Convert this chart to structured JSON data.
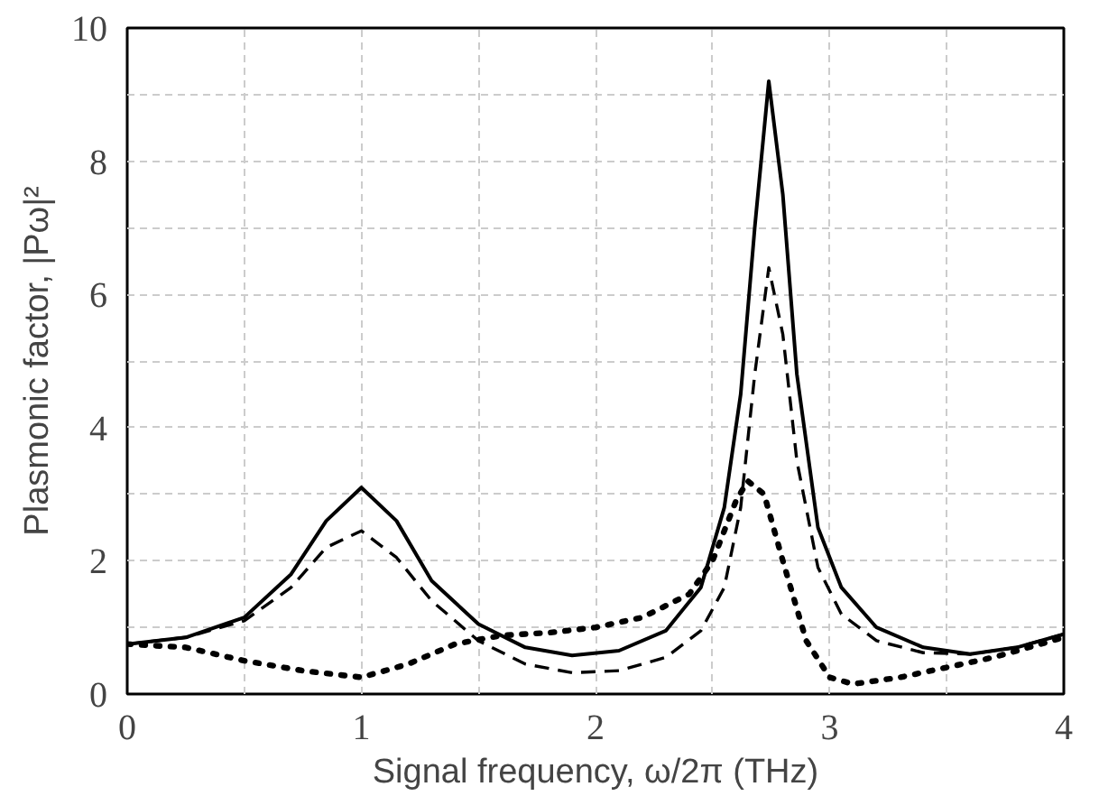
{
  "chart_data": {
    "type": "line",
    "xlabel": "Signal frequency, ω/2π (THz)",
    "ylabel": "Plasmonic factor, |Pω|²",
    "xlim": [
      0,
      4
    ],
    "ylim": [
      0,
      10
    ],
    "xticks": [
      0,
      {
        "value": 0.5,
        "label": null
      },
      1,
      {
        "value": 1.5,
        "label": null
      },
      2,
      {
        "value": 2.5,
        "label": null
      },
      3,
      {
        "value": 3.5,
        "label": null
      },
      4
    ],
    "yticks": [
      0,
      {
        "value": 1,
        "label": null
      },
      2,
      {
        "value": 3,
        "label": null
      },
      4,
      {
        "value": 5,
        "label": null
      },
      6,
      {
        "value": 7,
        "label": null
      },
      8,
      {
        "value": 9,
        "label": null
      },
      10
    ],
    "grid": true,
    "marker": "none",
    "series": [
      {
        "color": "#000000",
        "line_style": "solid",
        "x": [
          0,
          0.25,
          0.5,
          0.7,
          0.85,
          1.0,
          1.15,
          1.3,
          1.5,
          1.7,
          1.9,
          2.1,
          2.3,
          2.45,
          2.55,
          2.62,
          2.68,
          2.74,
          2.8,
          2.86,
          2.95,
          3.05,
          3.2,
          3.4,
          3.6,
          3.8,
          4.0
        ],
        "values": [
          0.75,
          0.85,
          1.15,
          1.8,
          2.6,
          3.1,
          2.6,
          1.7,
          1.05,
          0.7,
          0.58,
          0.65,
          0.95,
          1.6,
          2.8,
          4.5,
          7.0,
          9.2,
          7.5,
          4.8,
          2.5,
          1.6,
          1.0,
          0.7,
          0.6,
          0.7,
          0.9
        ]
      },
      {
        "color": "#000000",
        "line_style": "dashed",
        "x": [
          0,
          0.25,
          0.5,
          0.7,
          0.85,
          1.0,
          1.15,
          1.3,
          1.5,
          1.7,
          1.9,
          2.1,
          2.3,
          2.45,
          2.55,
          2.62,
          2.68,
          2.74,
          2.8,
          2.86,
          2.95,
          3.05,
          3.2,
          3.4,
          3.6,
          3.8,
          4.0
        ],
        "values": [
          0.75,
          0.85,
          1.1,
          1.6,
          2.2,
          2.45,
          2.05,
          1.4,
          0.8,
          0.45,
          0.32,
          0.35,
          0.55,
          0.95,
          1.6,
          2.8,
          4.8,
          6.4,
          5.4,
          3.5,
          1.9,
          1.2,
          0.8,
          0.62,
          0.6,
          0.7,
          0.9
        ]
      },
      {
        "color": "#000000",
        "line_style": "dotted",
        "x": [
          0,
          0.25,
          0.5,
          0.75,
          1.0,
          1.2,
          1.4,
          1.6,
          1.8,
          2.0,
          2.2,
          2.4,
          2.5,
          2.6,
          2.65,
          2.72,
          2.8,
          2.9,
          3.0,
          3.1,
          3.3,
          3.5,
          3.7,
          3.9,
          4.0
        ],
        "values": [
          0.75,
          0.7,
          0.5,
          0.35,
          0.25,
          0.45,
          0.75,
          0.88,
          0.92,
          1.0,
          1.15,
          1.5,
          2.0,
          2.9,
          3.2,
          3.0,
          2.0,
          0.8,
          0.25,
          0.15,
          0.25,
          0.4,
          0.55,
          0.75,
          0.85
        ]
      }
    ]
  }
}
